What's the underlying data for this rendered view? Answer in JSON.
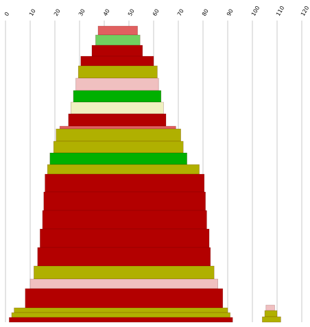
{
  "chart_data": {
    "type": "bar",
    "subtype": "stacked-trapezoid-funnel",
    "orientation": "vertical stacks of horizontal bands",
    "x_axis": {
      "position": "top",
      "ticks": [
        0,
        10,
        20,
        30,
        40,
        50,
        60,
        70,
        80,
        90,
        100,
        110,
        120
      ],
      "tick_labels": [
        "0",
        "10",
        "20",
        "30",
        "40",
        "50",
        "60",
        "70",
        "80",
        "90",
        "100",
        "110",
        "120"
      ],
      "xlim": [
        0,
        120
      ],
      "label_rotation_deg": -60
    },
    "grid": "vertical",
    "colors": {
      "dark_red": "#b30000",
      "light_red": "#e06060",
      "light_green": "#70d060",
      "green": "#00b000",
      "olive": "#b0b000",
      "pink": "#f0c0c0",
      "cream": "#f0f0c0",
      "grid": "#c8c8c8"
    },
    "stacks": [
      {
        "bands": [
          {
            "x0": 37.5,
            "x1": 53.5,
            "color": "light_red"
          },
          {
            "x0": 36.5,
            "x1": 54.5,
            "color": "light_green"
          },
          {
            "x0": 35.0,
            "x1": 55.5,
            "color": "dark_red"
          },
          {
            "x0": 30.5,
            "x1": 60.0,
            "color": "dark_red"
          },
          {
            "x0": 29.5,
            "x1": 61.5,
            "color": "olive"
          },
          {
            "x0": 28.5,
            "x1": 62.0,
            "color": "pink"
          },
          {
            "x0": 27.5,
            "x1": 63.0,
            "color": "green"
          },
          {
            "x0": 26.5,
            "x1": 64.0,
            "color": "cream"
          },
          {
            "x0": 25.5,
            "x1": 65.0,
            "color": "dark_red"
          },
          {
            "x0": 22.0,
            "x1": 69.0,
            "color": "light_red"
          },
          {
            "x0": 20.5,
            "x1": 71.0,
            "color": "olive"
          },
          {
            "x0": 19.5,
            "x1": 72.0,
            "color": "olive"
          },
          {
            "x0": 18.0,
            "x1": 73.5,
            "color": "green"
          },
          {
            "x0": 17.0,
            "x1": 78.5,
            "color": "olive"
          },
          {
            "x0": 16.0,
            "x1": 80.5,
            "color": "dark_red"
          },
          {
            "x0": 15.5,
            "x1": 81.0,
            "color": "dark_red"
          },
          {
            "x0": 15.0,
            "x1": 81.5,
            "color": "dark_red"
          },
          {
            "x0": 14.0,
            "x1": 82.5,
            "color": "dark_red"
          },
          {
            "x0": 13.0,
            "x1": 83.0,
            "color": "dark_red"
          },
          {
            "x0": 11.5,
            "x1": 84.5,
            "color": "olive"
          },
          {
            "x0": 10.0,
            "x1": 86.0,
            "color": "pink"
          },
          {
            "x0": 8.0,
            "x1": 88.0,
            "color": "dark_red"
          },
          {
            "x0": 3.5,
            "x1": 90.0,
            "color": "olive"
          },
          {
            "x0": 2.5,
            "x1": 91.0,
            "color": "olive"
          },
          {
            "x0": 1.5,
            "x1": 92.0,
            "color": "dark_red"
          }
        ]
      },
      {
        "bands": [
          {
            "x0": 105.5,
            "x1": 109.0,
            "color": "pink"
          },
          {
            "x0": 105.0,
            "x1": 110.0,
            "color": "olive"
          },
          {
            "x0": 104.0,
            "x1": 111.5,
            "color": "olive"
          }
        ]
      }
    ]
  }
}
